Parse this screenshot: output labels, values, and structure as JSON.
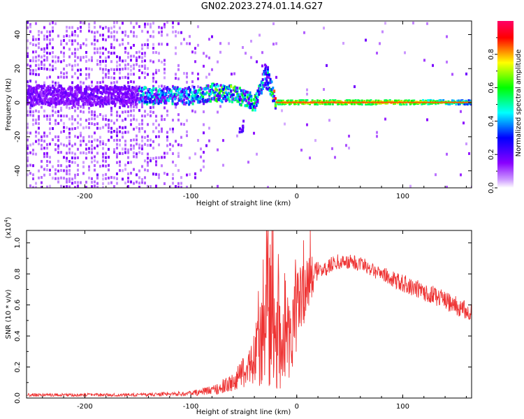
{
  "title": "GN02.2023.274.01.14.G27",
  "chart_data": [
    {
      "type": "heatmap",
      "xlabel": "Height of straight line (km)",
      "ylabel": "Frequency (Hz)",
      "xlim": [
        -255,
        165
      ],
      "ylim": [
        -50,
        48
      ],
      "xticks": [
        -200,
        -100,
        0,
        100
      ],
      "xtick_labels": [
        "-200",
        "-100",
        "0",
        "100"
      ],
      "yticks": [
        -40,
        -20,
        0,
        20,
        40
      ],
      "ytick_labels": [
        "-40",
        "-20",
        "0",
        "20",
        "40"
      ],
      "colorbar": {
        "label": "Normalized spectral amplitude",
        "range": [
          0.0,
          1.0
        ],
        "ticks": [
          0.0,
          0.2,
          0.4,
          0.6,
          0.8
        ],
        "tick_labels": [
          "0.0",
          "0.2",
          "0.4",
          "0.6",
          "0.8"
        ],
        "colors": [
          "#ffffff",
          "#8800ff",
          "#0000ff",
          "#00ffff",
          "#00ff00",
          "#ffff00",
          "#ff0000",
          "#ff0066"
        ]
      },
      "ridge_profile": [
        {
          "x": -150,
          "y": 4,
          "amp": 0.35
        },
        {
          "x": -100,
          "y": 4,
          "amp": 0.35
        },
        {
          "x": -80,
          "y": 6,
          "amp": 0.5
        },
        {
          "x": -60,
          "y": 5,
          "amp": 0.55
        },
        {
          "x": -40,
          "y": 0,
          "amp": 0.45
        },
        {
          "x": -30,
          "y": 17,
          "amp": 0.3
        },
        {
          "x": -20,
          "y": 0,
          "amp": 0.8
        },
        {
          "x": 0,
          "y": 0,
          "amp": 0.85
        },
        {
          "x": 100,
          "y": 0,
          "amp": 0.85
        },
        {
          "x": 165,
          "y": 0,
          "amp": 0.6
        }
      ]
    },
    {
      "type": "line",
      "xlabel": "Height of straight line (km)",
      "ylabel": "SNR (10 * v/v)",
      "yscale_label": "(x10",
      "yscale_exp": "4",
      "yscale_close": ")",
      "xlim": [
        -255,
        165
      ],
      "ylim": [
        0.0,
        1.08
      ],
      "xticks": [
        -200,
        -100,
        0,
        100
      ],
      "xtick_labels": [
        "-200",
        "-100",
        "0",
        "100"
      ],
      "yticks": [
        0.0,
        0.2,
        0.4,
        0.6,
        0.8,
        1.0
      ],
      "ytick_labels": [
        "0.0",
        "0.2",
        "0.4",
        "0.6",
        "0.8",
        "1.0"
      ],
      "color": "#ee3333",
      "series_envelope": [
        {
          "x": -255,
          "y": 0.02,
          "spread": 0.01
        },
        {
          "x": -150,
          "y": 0.02,
          "spread": 0.01
        },
        {
          "x": -100,
          "y": 0.03,
          "spread": 0.015
        },
        {
          "x": -80,
          "y": 0.05,
          "spread": 0.03
        },
        {
          "x": -60,
          "y": 0.1,
          "spread": 0.06
        },
        {
          "x": -45,
          "y": 0.2,
          "spread": 0.12
        },
        {
          "x": -35,
          "y": 0.35,
          "spread": 0.3
        },
        {
          "x": -25,
          "y": 0.5,
          "spread": 0.45
        },
        {
          "x": -15,
          "y": 0.3,
          "spread": 0.25
        },
        {
          "x": -5,
          "y": 0.45,
          "spread": 0.3
        },
        {
          "x": 5,
          "y": 0.65,
          "spread": 0.25
        },
        {
          "x": 10,
          "y": 0.75,
          "spread": 0.2
        },
        {
          "x": 20,
          "y": 0.82,
          "spread": 0.06
        },
        {
          "x": 40,
          "y": 0.88,
          "spread": 0.05
        },
        {
          "x": 60,
          "y": 0.87,
          "spread": 0.05
        },
        {
          "x": 80,
          "y": 0.8,
          "spread": 0.05
        },
        {
          "x": 100,
          "y": 0.74,
          "spread": 0.06
        },
        {
          "x": 130,
          "y": 0.66,
          "spread": 0.06
        },
        {
          "x": 165,
          "y": 0.55,
          "spread": 0.06
        }
      ]
    }
  ]
}
